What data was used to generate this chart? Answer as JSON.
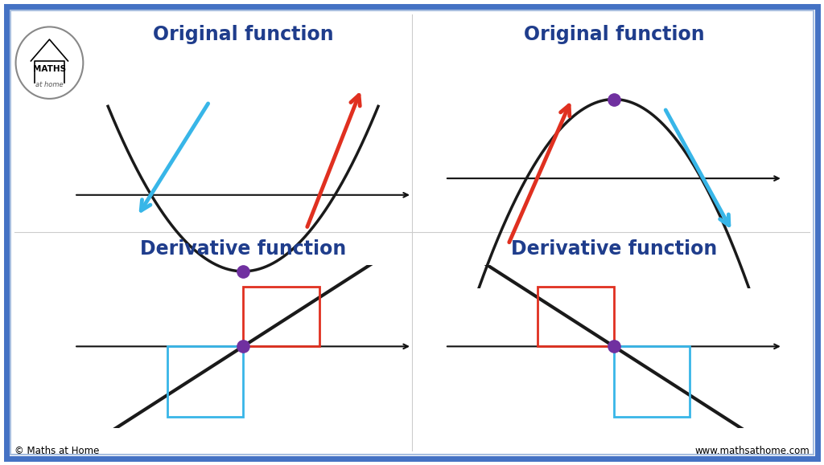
{
  "bg_color": "#ffffff",
  "border_color_outer": "#4472c4",
  "border_color_inner": "#a8bfe0",
  "title_color": "#1f3d8c",
  "title1": "Original function",
  "title2": "Original function",
  "title3": "Derivative function",
  "title4": "Derivative function",
  "arrow_blue": "#38b6e8",
  "arrow_red": "#e03020",
  "dot_color": "#7030a0",
  "line_color": "#1a1a1a",
  "rect_red": "#e03020",
  "rect_blue": "#38b6e8",
  "copyright": "© Maths at Home",
  "website": "www.mathsathome.com",
  "axis_color": "#111111"
}
